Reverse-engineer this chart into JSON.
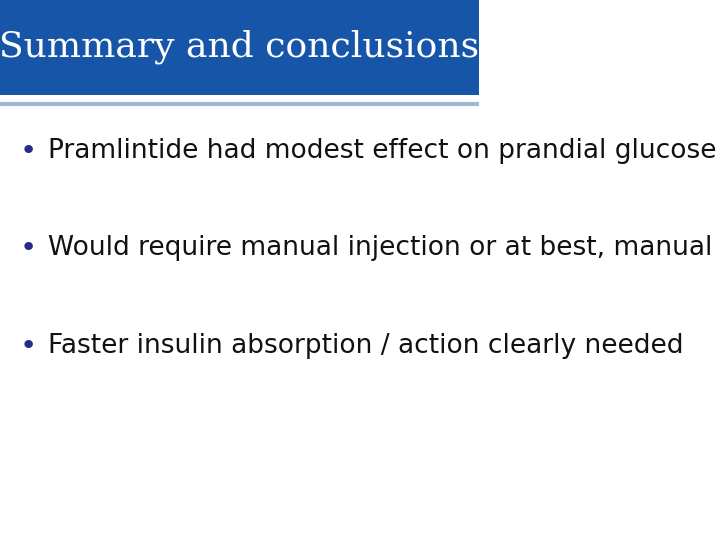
{
  "title": "Summary and conclusions",
  "title_color": "#ffffff",
  "title_bg_color": "#1755a8",
  "title_fontsize": 26,
  "title_font": "serif",
  "separator_color": "#a0b8d8",
  "body_bg_color": "#ffffff",
  "bullet_points": [
    "Pramlintide had modest effect on prandial glucose",
    "Would require manual injection or at best, manual bolus",
    "Faster insulin absorption / action clearly needed"
  ],
  "bullet_color": "#2a2a8a",
  "text_color": "#111111",
  "text_fontsize": 19,
  "text_font": "sans-serif",
  "bullet_char": "•"
}
